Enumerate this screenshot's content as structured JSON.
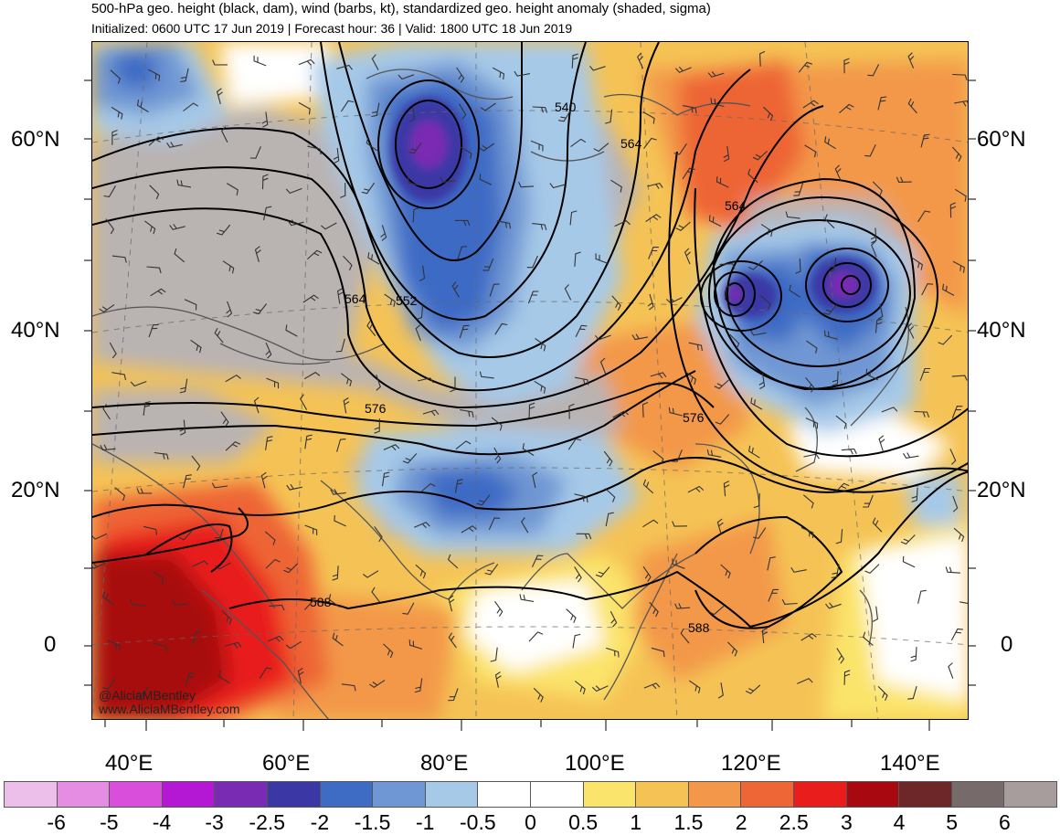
{
  "header": {
    "title": "500-hPa geo. height (black, dam), wind (barbs, kt), standardized geo. height anomaly (shaded, sigma)",
    "subtitle": "Initialized: 0600 UTC 17 Jun 2019 | Forecast hour: 36 | Valid: 1800 UTC 18 Jun 2019"
  },
  "map": {
    "lat_labels": [
      "60°N",
      "40°N",
      "20°N",
      "0"
    ],
    "lon_labels": [
      "40°E",
      "60°E",
      "80°E",
      "100°E",
      "120°E",
      "140°E"
    ],
    "contour_labels": [
      "540",
      "552",
      "564",
      "564",
      "564",
      "576",
      "576",
      "588",
      "588"
    ],
    "credit": [
      "@AliciaMBentley",
      "www.AliciaMBentley.com"
    ]
  },
  "colorbar": {
    "colors": [
      "#ebbfea",
      "#e58de3",
      "#d94fdb",
      "#b418d4",
      "#7a2bb3",
      "#3b38a5",
      "#3e6bc4",
      "#6f97d3",
      "#a6c9e8",
      "#ffffff",
      "#ffffff",
      "#fbe46b",
      "#f5c355",
      "#f3984a",
      "#ee6536",
      "#e81d1c",
      "#a80910",
      "#6e2728",
      "#766b6a",
      "#a79d9c"
    ],
    "labels": [
      "-6",
      "-5",
      "-4",
      "-3",
      "-2.5",
      "-2",
      "-1.5",
      "-1",
      "-0.5",
      "0",
      "0.5",
      "1",
      "1.5",
      "2",
      "2.5",
      "3",
      "4",
      "5",
      "6"
    ]
  }
}
